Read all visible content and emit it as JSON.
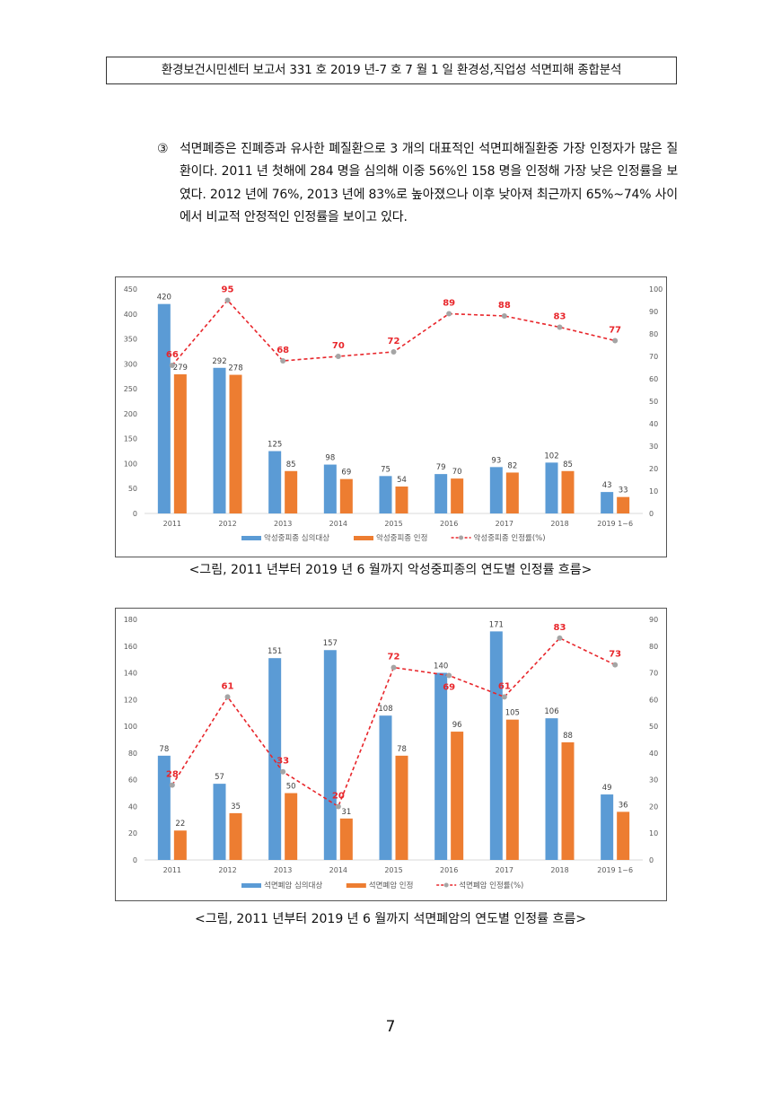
{
  "header": {
    "title": "환경보건시민센터 보고서 331 호 2019 년-7 호 7 월 1 일 환경성,직업성 석면피해 종합분석"
  },
  "paragraph": {
    "marker": "③",
    "text": "석면폐증은 진폐증과 유사한 폐질환으로 3 개의 대표적인 석면피해질환중 가장 인정자가 많은 질환이다. 2011 년 첫해에 284 명을 심의해 이중 56%인 158 명을 인정해 가장 낮은 인정률을 보였다. 2012 년에 76%, 2013 년에 83%로 높아졌으나 이후 낮아져 최근까지 65%~74% 사이에서 비교적 안정적인 인정률을 보이고 있다."
  },
  "colors": {
    "blue": "#5b9bd5",
    "orange": "#ed7d31",
    "rate_line": "#e8262b",
    "rate_label": "#e8262b",
    "marker": "#a5a5a5"
  },
  "chart_data": [
    {
      "type": "bar",
      "title": "",
      "categories": [
        "2011",
        "2012",
        "2013",
        "2014",
        "2015",
        "2016",
        "2017",
        "2018",
        "2019 1~6"
      ],
      "series": [
        {
          "name": "악성중피종 심의대상",
          "kind": "bar",
          "axis": "left",
          "values": [
            420,
            292,
            125,
            98,
            75,
            79,
            93,
            102,
            43
          ]
        },
        {
          "name": "악성중피종 인정",
          "kind": "bar",
          "axis": "left",
          "values": [
            279,
            278,
            85,
            69,
            54,
            70,
            82,
            85,
            33
          ]
        },
        {
          "name": "악성중피종 인정률(%)",
          "kind": "line",
          "axis": "right",
          "values": [
            66,
            95,
            68,
            70,
            72,
            89,
            88,
            83,
            77
          ]
        }
      ],
      "ylim": [
        0,
        450
      ],
      "yticks": [
        0,
        50,
        100,
        150,
        200,
        250,
        300,
        350,
        400,
        450
      ],
      "y2lim": [
        0,
        100
      ],
      "y2ticks": [
        0,
        10,
        20,
        30,
        40,
        50,
        60,
        70,
        80,
        90,
        100
      ],
      "legend": "bottom",
      "grid": false,
      "caption": "<그림, 2011 년부터 2019 년 6 월까지 악성중피종의 연도별 인정률 흐름>"
    },
    {
      "type": "bar",
      "title": "",
      "categories": [
        "2011",
        "2012",
        "2013",
        "2014",
        "2015",
        "2016",
        "2017",
        "2018",
        "2019 1~6"
      ],
      "series": [
        {
          "name": "석면폐암 심의대상",
          "kind": "bar",
          "axis": "left",
          "values": [
            78,
            57,
            151,
            157,
            108,
            140,
            171,
            106,
            49
          ]
        },
        {
          "name": "석면폐암 인정",
          "kind": "bar",
          "axis": "left",
          "values": [
            22,
            35,
            50,
            31,
            78,
            96,
            105,
            88,
            36
          ]
        },
        {
          "name": "석면폐암 인정률(%)",
          "kind": "line",
          "axis": "right",
          "values": [
            28,
            61,
            33,
            20,
            72,
            69,
            61,
            83,
            73
          ]
        }
      ],
      "ylim": [
        0,
        180
      ],
      "yticks": [
        0,
        20,
        40,
        60,
        80,
        100,
        120,
        140,
        160,
        180
      ],
      "y2lim": [
        0,
        90
      ],
      "y2ticks": [
        0,
        10,
        20,
        30,
        40,
        50,
        60,
        70,
        80,
        90
      ],
      "legend": "bottom",
      "grid": false,
      "caption": "<그림, 2011 년부터 2019 년 6 월까지 석면폐암의 연도별 인정률 흐름>"
    }
  ],
  "page_number": "7"
}
